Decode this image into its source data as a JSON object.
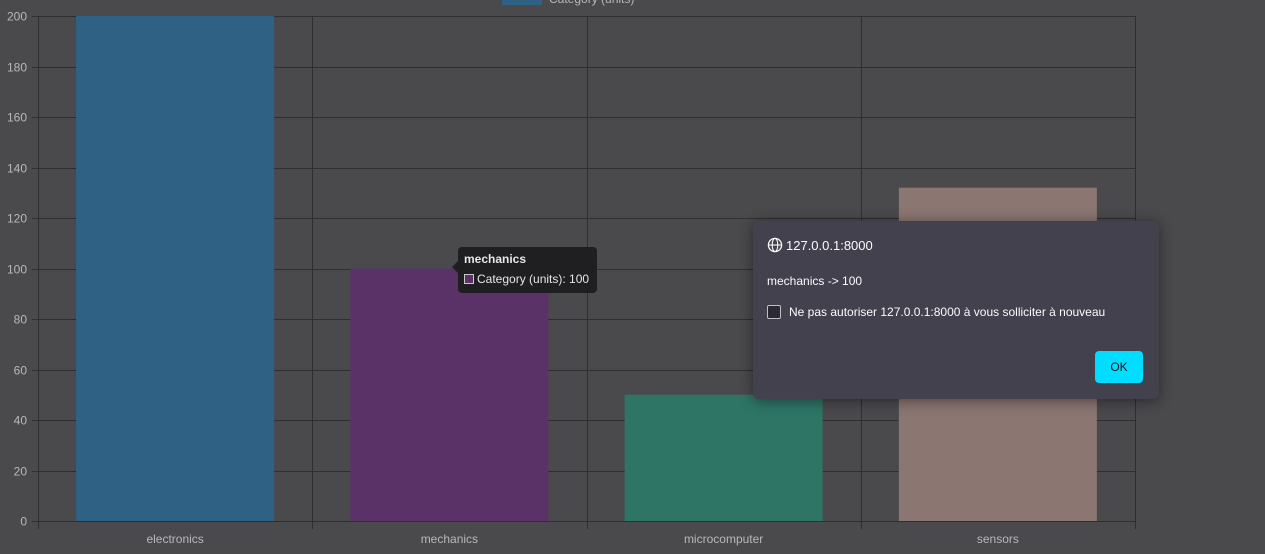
{
  "chart_data": {
    "type": "bar",
    "categories": [
      "electronics",
      "mechanics",
      "microcomputer",
      "sensors"
    ],
    "series": [
      {
        "name": "Category (units)",
        "values": [
          200,
          100,
          50,
          132
        ]
      }
    ],
    "bar_colors": [
      "#2e6184",
      "#5a3268",
      "#2e7565",
      "#8b7672"
    ],
    "legend_color": "#2e6184",
    "ylim": [
      0,
      200
    ],
    "y_ticks": [
      "0",
      "20",
      "40",
      "60",
      "80",
      "100",
      "120",
      "140",
      "160",
      "180",
      "200"
    ],
    "grid": true,
    "legend_position": "top"
  },
  "tooltip": {
    "title": "mechanics",
    "label": "Category (units): 100",
    "swatch_color": "#5a3268"
  },
  "dialog": {
    "origin": "127.0.0.1:8000",
    "message": "mechanics -> 100",
    "checkbox_label": "Ne pas autoriser 127.0.0.1:8000 à vous solliciter à nouveau",
    "ok_label": "OK",
    "icon": "globe-icon"
  }
}
